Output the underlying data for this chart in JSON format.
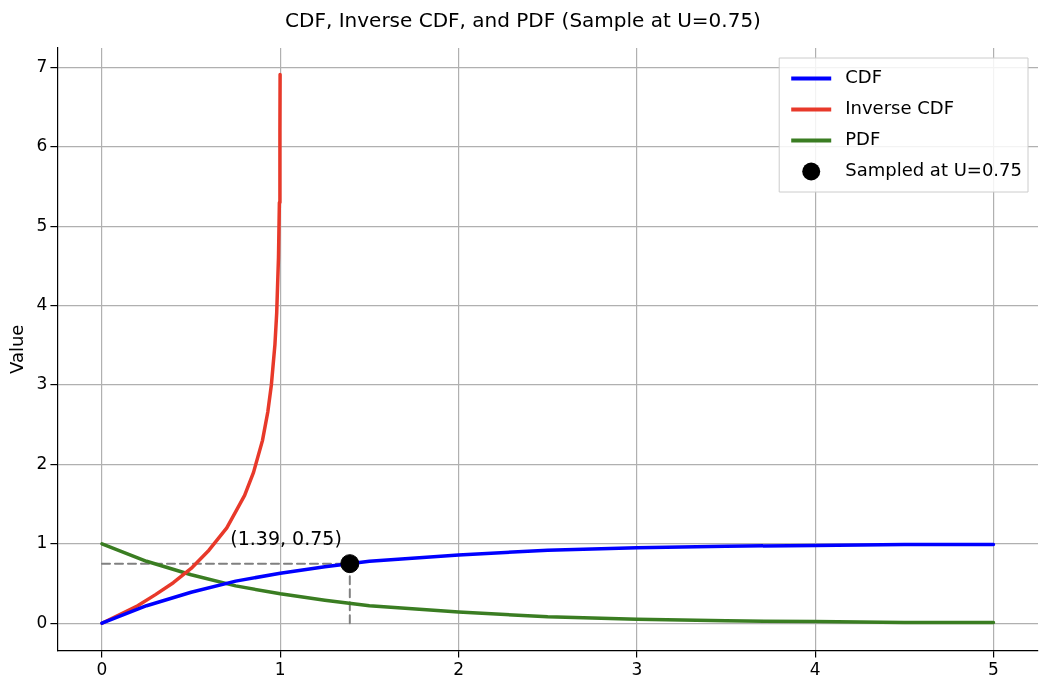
{
  "chart_data": {
    "type": "line",
    "title": "CDF, Inverse CDF, and PDF (Sample at U=0.75)",
    "ylabel": "Value",
    "xlim": [
      -0.25,
      5.25
    ],
    "ylim": [
      -0.345,
      7.245
    ],
    "xticks": [
      0,
      1,
      2,
      3,
      4,
      5
    ],
    "yticks": [
      0,
      1,
      2,
      3,
      4,
      5,
      6,
      7
    ],
    "grid": true,
    "legend": "top right",
    "marker": "none",
    "annotations": [
      {
        "text": "(1.39, 0.75)",
        "x": 1.39,
        "y": 0.75
      }
    ],
    "series": [
      {
        "name": "CDF",
        "color": "#0000ff",
        "x": [
          0,
          0.25,
          0.5,
          0.75,
          1,
          1.25,
          1.5,
          2,
          2.5,
          3,
          3.5,
          4,
          4.5,
          5
        ],
        "values": [
          0,
          0.22,
          0.39,
          0.53,
          0.63,
          0.71,
          0.78,
          0.86,
          0.92,
          0.95,
          0.97,
          0.98,
          0.99,
          0.99
        ]
      },
      {
        "name": "Inverse CDF",
        "color": "#e8392a",
        "x": [
          0,
          0.1,
          0.2,
          0.3,
          0.4,
          0.5,
          0.6,
          0.7,
          0.8,
          0.85,
          0.9,
          0.93,
          0.95,
          0.97,
          0.98,
          0.99,
          0.995,
          0.998,
          0.999
        ],
        "values": [
          0,
          0.11,
          0.22,
          0.36,
          0.51,
          0.69,
          0.92,
          1.2,
          1.61,
          1.9,
          2.3,
          2.66,
          3,
          3.51,
          3.91,
          4.61,
          5.3,
          6.21,
          6.91
        ]
      },
      {
        "name": "PDF",
        "color": "#3a7d22",
        "x": [
          0,
          0.25,
          0.5,
          0.75,
          1,
          1.25,
          1.5,
          2,
          2.5,
          3,
          3.5,
          4,
          4.5,
          5
        ],
        "values": [
          1,
          0.78,
          0.61,
          0.47,
          0.37,
          0.29,
          0.22,
          0.14,
          0.08,
          0.05,
          0.03,
          0.02,
          0.01,
          0.01
        ]
      },
      {
        "color": "#808080",
        "line_style": "dashed",
        "x": [
          0,
          1.39
        ],
        "values": [
          0.75,
          0.75
        ]
      },
      {
        "color": "#808080",
        "line_style": "dashed",
        "x": [
          1.39,
          1.39
        ],
        "values": [
          0,
          0.75
        ]
      },
      {
        "type": "scatter",
        "name": "Sampled at U=0.75",
        "color": "#000000",
        "marker": "circle",
        "x": [
          1.39
        ],
        "values": [
          0.75
        ]
      }
    ]
  }
}
